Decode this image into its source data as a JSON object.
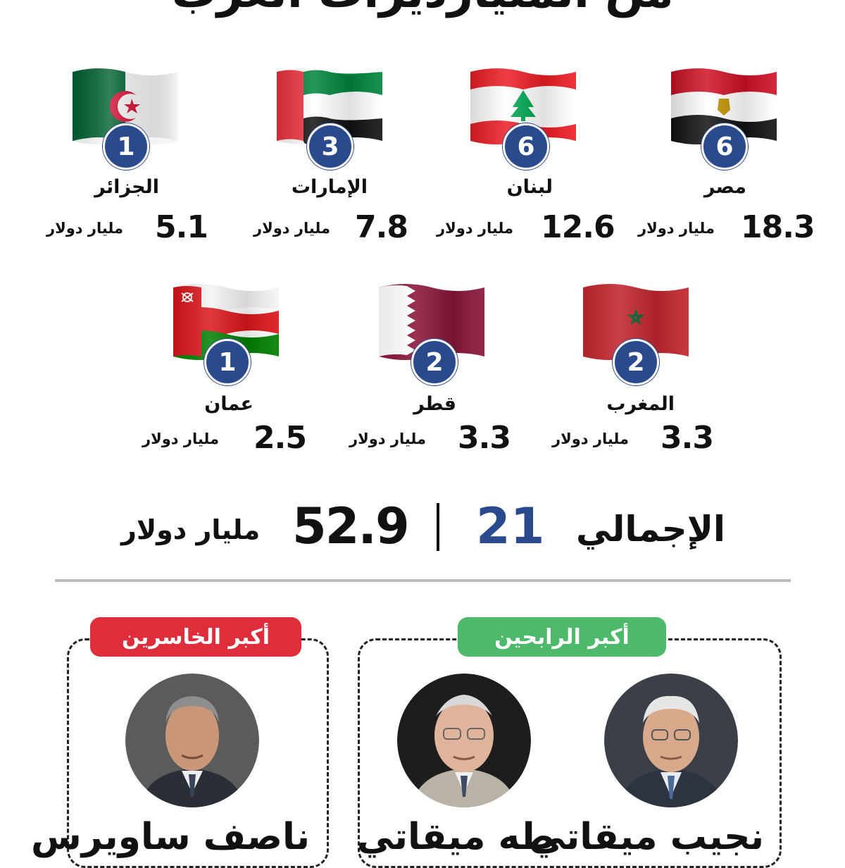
{
  "header": {
    "title": "من المليارديرات العرب"
  },
  "countries": [
    {
      "name": "مصر",
      "count": "6",
      "value": "18.3",
      "unit": "مليار دولار",
      "flag": "egypt-flag"
    },
    {
      "name": "لبنان",
      "count": "6",
      "value": "12.6",
      "unit": "مليار دولار",
      "flag": "lebanon-flag"
    },
    {
      "name": "الإمارات",
      "count": "3",
      "value": "7.8",
      "unit": "مليار دولار",
      "flag": "uae-flag"
    },
    {
      "name": "الجزائر",
      "count": "1",
      "value": "5.1",
      "unit": "مليار دولار",
      "flag": "algeria-flag"
    },
    {
      "name": "المغرب",
      "count": "2",
      "value": "3.3",
      "unit": "مليار دولار",
      "flag": "morocco-flag"
    },
    {
      "name": "قطر",
      "count": "2",
      "value": "3.3",
      "unit": "مليار دولار",
      "flag": "qatar-flag"
    },
    {
      "name": "عمان",
      "count": "1",
      "value": "2.5",
      "unit": "مليار دولار",
      "flag": "oman-flag"
    }
  ],
  "total": {
    "label": "الإجمالي",
    "count": "21",
    "value": "52.9",
    "unit": "مليار دولار"
  },
  "winners": {
    "label": "أكبر الرابحين",
    "color": "#4cba6a",
    "people": [
      {
        "name": "نجيب ميقاتي"
      },
      {
        "name": "طه ميقاتي"
      }
    ]
  },
  "losers": {
    "label": "أكبر الخاسرين",
    "color": "#e02d3c",
    "people": [
      {
        "name": "ناصف ساويرس"
      }
    ]
  },
  "colors": {
    "badge": "#2a4a8e",
    "count_text": "#2a4a8e"
  }
}
